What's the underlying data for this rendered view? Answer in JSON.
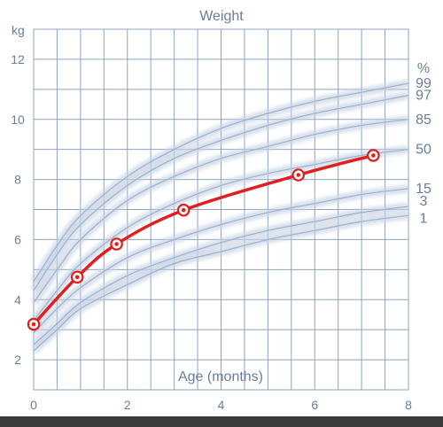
{
  "chart_data": {
    "type": "line",
    "title": "Weight",
    "ylabel": "kg",
    "xlabel": "Age (months)",
    "percent_label": "%",
    "xlim": [
      0,
      8
    ],
    "ylim": [
      1,
      13
    ],
    "x_ticks": [
      "0",
      "2",
      "4",
      "6",
      "8"
    ],
    "y_ticks": [
      "2",
      "4",
      "6",
      "8",
      "10",
      "12"
    ],
    "grid": true,
    "percentiles": [
      {
        "name": "99",
        "values": [
          [
            0,
            4.6
          ],
          [
            0.5,
            5.8
          ],
          [
            1,
            6.8
          ],
          [
            2,
            8.1
          ],
          [
            3,
            9.0
          ],
          [
            4,
            9.7
          ],
          [
            5,
            10.2
          ],
          [
            6,
            10.6
          ],
          [
            7,
            10.9
          ],
          [
            8,
            11.2
          ]
        ]
      },
      {
        "name": "97",
        "values": [
          [
            0,
            4.3
          ],
          [
            0.5,
            5.5
          ],
          [
            1,
            6.5
          ],
          [
            2,
            7.8
          ],
          [
            3,
            8.7
          ],
          [
            4,
            9.3
          ],
          [
            5,
            9.8
          ],
          [
            6,
            10.2
          ],
          [
            7,
            10.5
          ],
          [
            8,
            10.8
          ]
        ]
      },
      {
        "name": "85",
        "values": [
          [
            0,
            3.9
          ],
          [
            0.5,
            5.0
          ],
          [
            1,
            6.0
          ],
          [
            2,
            7.3
          ],
          [
            3,
            8.1
          ],
          [
            4,
            8.7
          ],
          [
            5,
            9.1
          ],
          [
            6,
            9.5
          ],
          [
            7,
            9.8
          ],
          [
            8,
            10.0
          ]
        ]
      },
      {
        "name": "50",
        "values": [
          [
            0,
            3.3
          ],
          [
            0.5,
            4.3
          ],
          [
            1,
            5.2
          ],
          [
            2,
            6.4
          ],
          [
            3,
            7.2
          ],
          [
            4,
            7.8
          ],
          [
            5,
            8.2
          ],
          [
            6,
            8.5
          ],
          [
            7,
            8.8
          ],
          [
            8,
            9.0
          ]
        ]
      },
      {
        "name": "15",
        "values": [
          [
            0,
            2.9
          ],
          [
            0.5,
            3.7
          ],
          [
            1,
            4.4
          ],
          [
            2,
            5.4
          ],
          [
            3,
            6.0
          ],
          [
            4,
            6.5
          ],
          [
            5,
            6.9
          ],
          [
            6,
            7.2
          ],
          [
            7,
            7.5
          ],
          [
            8,
            7.7
          ]
        ]
      },
      {
        "name": "3",
        "values": [
          [
            0,
            2.5
          ],
          [
            0.5,
            3.2
          ],
          [
            1,
            3.9
          ],
          [
            2,
            4.8
          ],
          [
            3,
            5.4
          ],
          [
            4,
            5.9
          ],
          [
            5,
            6.3
          ],
          [
            6,
            6.6
          ],
          [
            7,
            6.9
          ],
          [
            8,
            7.1
          ]
        ]
      },
      {
        "name": "1",
        "values": [
          [
            0,
            2.3
          ],
          [
            0.5,
            3.0
          ],
          [
            1,
            3.7
          ],
          [
            2,
            4.5
          ],
          [
            3,
            5.2
          ],
          [
            4,
            5.6
          ],
          [
            5,
            6.0
          ],
          [
            6,
            6.3
          ],
          [
            7,
            6.6
          ],
          [
            8,
            6.8
          ]
        ]
      }
    ],
    "series": [
      {
        "x": [
          0,
          0.93,
          1.77,
          3.2,
          5.65,
          7.25
        ],
        "y": [
          3.18,
          4.75,
          5.85,
          6.98,
          8.15,
          8.8
        ]
      }
    ],
    "colors": {
      "measurement": "#e02020",
      "percentile": "#9fb1cc",
      "grid": "#8fa3c0",
      "text": "#6b7d99"
    }
  }
}
